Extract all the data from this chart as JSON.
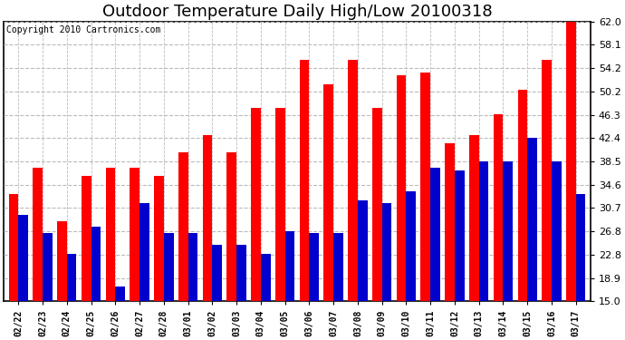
{
  "title": "Outdoor Temperature Daily High/Low 20100318",
  "copyright": "Copyright 2010 Cartronics.com",
  "dates": [
    "02/22",
    "02/23",
    "02/24",
    "02/25",
    "02/26",
    "02/27",
    "02/28",
    "03/01",
    "03/02",
    "03/03",
    "03/04",
    "03/05",
    "03/06",
    "03/07",
    "03/08",
    "03/09",
    "03/10",
    "03/11",
    "03/12",
    "03/13",
    "03/14",
    "03/15",
    "03/16",
    "03/17"
  ],
  "highs": [
    33.0,
    37.5,
    28.5,
    36.0,
    37.5,
    37.5,
    36.0,
    40.0,
    43.0,
    40.0,
    47.5,
    47.5,
    55.5,
    51.5,
    55.5,
    47.5,
    53.0,
    53.5,
    41.5,
    43.0,
    46.5,
    50.5,
    55.5,
    62.0
  ],
  "lows": [
    29.5,
    26.5,
    23.0,
    27.5,
    17.5,
    31.5,
    26.5,
    26.5,
    24.5,
    24.5,
    23.0,
    26.8,
    26.5,
    26.5,
    32.0,
    31.5,
    33.5,
    37.5,
    37.0,
    38.5,
    38.5,
    42.5,
    38.5,
    33.0
  ],
  "high_color": "#ff0000",
  "low_color": "#0000cc",
  "bg_color": "#ffffff",
  "plot_bg_color": "#ffffff",
  "grid_color": "#bbbbbb",
  "yticks": [
    15.0,
    18.9,
    22.8,
    26.8,
    30.7,
    34.6,
    38.5,
    42.4,
    46.3,
    50.2,
    54.2,
    58.1,
    62.0
  ],
  "ymin": 15.0,
  "ymax": 62.0,
  "bar_width": 0.4,
  "title_fontsize": 13,
  "copyright_fontsize": 7,
  "tick_fontsize": 8,
  "xtick_fontsize": 7
}
